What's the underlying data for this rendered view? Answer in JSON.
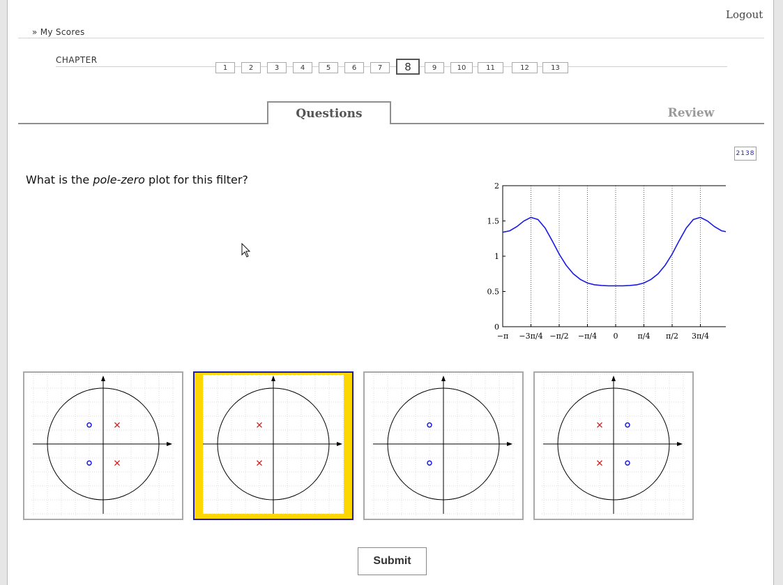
{
  "header": {
    "logout_label": "Logout",
    "breadcrumb_label": "» My Scores"
  },
  "chapter_nav": {
    "label": "CHAPTER",
    "chapters": [
      "1",
      "2",
      "3",
      "4",
      "5",
      "6",
      "7",
      "8",
      "9",
      "10",
      "11",
      "12",
      "13"
    ],
    "current": "8"
  },
  "tabs": {
    "questions_label": "Questions",
    "review_label": "Review",
    "active": "Questions"
  },
  "question": {
    "id_badge": "2138",
    "text_before": "What is the ",
    "text_emphasis": "pole-zero",
    "text_after": " plot for this filter?"
  },
  "chart_data": {
    "type": "line",
    "xlabel": "",
    "ylabel": "",
    "xlim": [
      -3.1416,
      3.1416
    ],
    "ylim": [
      0,
      2
    ],
    "yticks": [
      0,
      0.5,
      1,
      1.5,
      2
    ],
    "ytick_labels": [
      "0",
      "0.5",
      "1",
      "1.5",
      "2"
    ],
    "xticks": [
      -3.1416,
      -2.3562,
      -1.5708,
      -0.7854,
      0,
      0.7854,
      1.5708,
      2.3562,
      3.1416
    ],
    "xtick_labels": [
      "−π",
      "−3π/4",
      "−π/2",
      "−π/4",
      "0",
      "π/4",
      "π/2",
      "3π/4",
      "π"
    ],
    "grid": "vertical-dotted",
    "line_color": "#1a1ae6",
    "series": [
      {
        "x": [
          -3.1416,
          -2.9452,
          -2.7489,
          -2.5525,
          -2.3562,
          -2.1598,
          -1.9635,
          -1.7671,
          -1.5708,
          -1.3744,
          -1.1781,
          -0.9817,
          -0.7854,
          -0.589,
          -0.3927,
          -0.1963,
          0,
          0.1963,
          0.3927,
          0.589,
          0.7854,
          0.9817,
          1.1781,
          1.3744,
          1.5708,
          1.7671,
          1.9635,
          2.1598,
          2.3562,
          2.5525,
          2.7489,
          2.9452,
          3.1416
        ],
        "y": [
          1.34,
          1.36,
          1.42,
          1.5,
          1.55,
          1.52,
          1.4,
          1.22,
          1.03,
          0.87,
          0.75,
          0.67,
          0.62,
          0.595,
          0.585,
          0.58,
          0.58,
          0.58,
          0.585,
          0.595,
          0.62,
          0.67,
          0.75,
          0.87,
          1.03,
          1.22,
          1.4,
          1.52,
          1.55,
          1.5,
          1.42,
          1.36,
          1.34
        ]
      }
    ]
  },
  "choices": [
    {
      "id": "a",
      "zeros": [
        [
          -0.25,
          0.4
        ],
        [
          -0.25,
          -0.4
        ]
      ],
      "poles": [
        [
          0.25,
          0.4
        ],
        [
          0.25,
          -0.4
        ]
      ]
    },
    {
      "id": "b",
      "zeros": [],
      "poles": [
        [
          -0.25,
          0.4
        ],
        [
          -0.25,
          -0.4
        ]
      ]
    },
    {
      "id": "c",
      "zeros": [
        [
          -0.25,
          0.4
        ],
        [
          -0.25,
          -0.4
        ]
      ],
      "poles": []
    },
    {
      "id": "d",
      "zeros": [
        [
          0.25,
          0.4
        ],
        [
          0.25,
          -0.4
        ]
      ],
      "poles": [
        [
          -0.25,
          0.4
        ],
        [
          -0.25,
          -0.4
        ]
      ]
    }
  ],
  "selected_choice": "b",
  "colors": {
    "zero": "#1a1ae6",
    "pole": "#d11b1b",
    "selected_border": "#1c1cb0",
    "selected_fill": "#ffd700"
  },
  "submit_label": "Submit"
}
